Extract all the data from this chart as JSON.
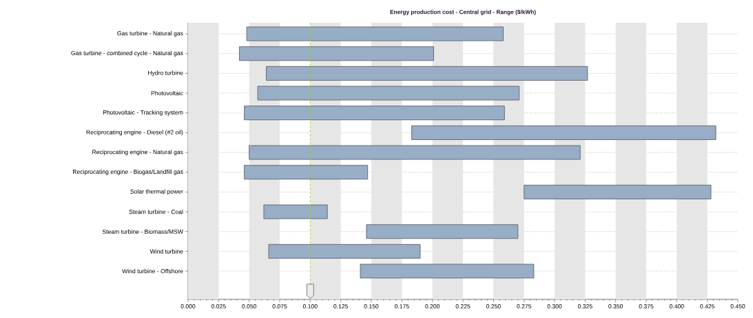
{
  "chart_data": {
    "type": "bar",
    "orientation": "horizontal",
    "title": "Energy production cost - Central grid - Range ($/kWh)",
    "categories": [
      "Gas turbine - Natural gas",
      "Gas turbine - combined cycle - Natural gas",
      "Hydro turbine",
      "Photovoltaic",
      "Photovoltaic - Tracking system",
      "Reciprocating engine - Diesel (#2 oil)",
      "Reciprocating engine - Natural gas",
      "Reciprocating engine - Biogas/Landfill gas",
      "Solar thermal power",
      "Steam turbine - Coal",
      "Steam turbine - Biomass/MSW",
      "Wind turbine",
      "Wind turbine - Offshore"
    ],
    "base": [
      0.048,
      0.042,
      0.064,
      0.057,
      0.046,
      0.183,
      0.05,
      0.046,
      0.275,
      0.062,
      0.146,
      0.066,
      0.141
    ],
    "values": [
      0.21,
      0.159,
      0.263,
      0.214,
      0.213,
      0.249,
      0.271,
      0.101,
      0.153,
      0.052,
      0.124,
      0.124,
      0.142
    ],
    "color": "#98adc6",
    "xlim": [
      0,
      0.45
    ],
    "xticks": [
      {
        "value": 0,
        "label": "0.000"
      },
      {
        "value": 0.025,
        "label": "0.025"
      },
      {
        "value": 0.05,
        "label": "0.050"
      },
      {
        "value": 0.075,
        "label": "0.075"
      },
      {
        "value": 0.1,
        "label": "0.100"
      },
      {
        "value": 0.125,
        "label": "0.125"
      },
      {
        "value": 0.15,
        "label": "0.150"
      },
      {
        "value": 0.175,
        "label": "0.175"
      },
      {
        "value": 0.2,
        "label": "0.200"
      },
      {
        "value": 0.225,
        "label": "0.225"
      },
      {
        "value": 0.25,
        "label": "0.250"
      },
      {
        "value": 0.275,
        "label": "0.275"
      },
      {
        "value": 0.3,
        "label": "0.300"
      },
      {
        "value": 0.325,
        "label": "0.325"
      },
      {
        "value": 0.35,
        "label": "0.350"
      },
      {
        "value": 0.375,
        "label": "0.375"
      },
      {
        "value": 0.4,
        "label": "0.400"
      },
      {
        "value": 0.425,
        "label": "0.425"
      },
      {
        "value": 0.45,
        "label": "0.450"
      }
    ],
    "grid": "y",
    "ref_lines": [
      {
        "axis": "x",
        "value": 0.1,
        "color": "#9acd32",
        "line_style": "dashed"
      }
    ],
    "bands": [
      {
        "axis": "x",
        "from": 0,
        "to": 0.025,
        "color": "#e6e6e6"
      },
      {
        "axis": "x",
        "from": 0.05,
        "to": 0.075,
        "color": "#e6e6e6"
      },
      {
        "axis": "x",
        "from": 0.1,
        "to": 0.125,
        "color": "#e6e6e6"
      },
      {
        "axis": "x",
        "from": 0.15,
        "to": 0.175,
        "color": "#e6e6e6"
      },
      {
        "axis": "x",
        "from": 0.2,
        "to": 0.225,
        "color": "#e6e6e6"
      },
      {
        "axis": "x",
        "from": 0.25,
        "to": 0.275,
        "color": "#e6e6e6"
      },
      {
        "axis": "x",
        "from": 0.3,
        "to": 0.325,
        "color": "#e6e6e6"
      },
      {
        "axis": "x",
        "from": 0.35,
        "to": 0.375,
        "color": "#e6e6e6"
      },
      {
        "axis": "x",
        "from": 0.4,
        "to": 0.425,
        "color": "#e6e6e6"
      }
    ]
  }
}
